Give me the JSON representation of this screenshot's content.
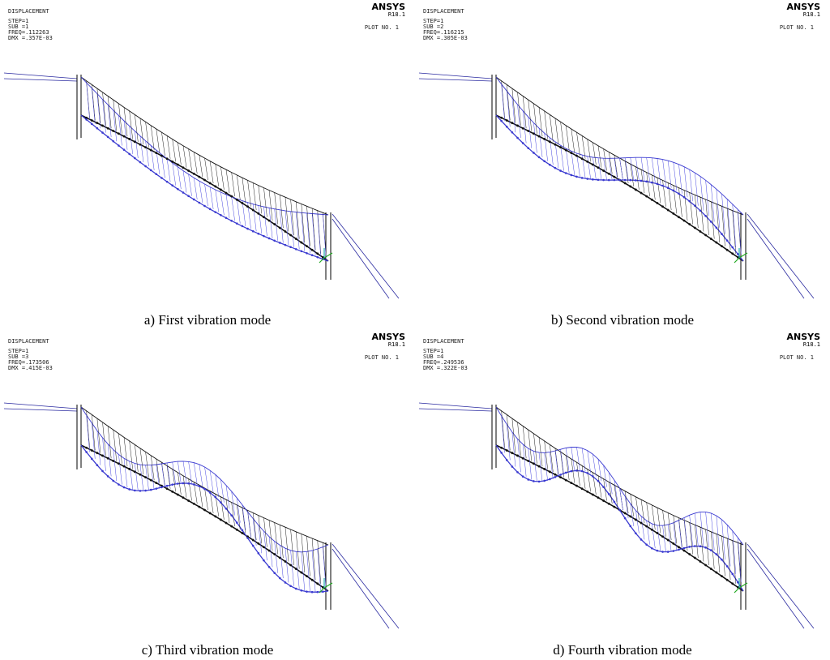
{
  "panels": [
    {
      "label": "DISPLACEMENT",
      "step": "STEP=1",
      "sub": "SUB =1",
      "freq": "FREQ=.112263",
      "dmx": "DMX =.357E-03",
      "brand": "ANSYS",
      "version": "R18.1",
      "plot": "PLOT NO.   1",
      "caption": "a) First vibration mode"
    },
    {
      "label": "DISPLACEMENT",
      "step": "STEP=1",
      "sub": "SUB =2",
      "freq": "FREQ=.116215",
      "dmx": "DMX =.305E-03",
      "brand": "ANSYS",
      "version": "R18.1",
      "plot": "PLOT NO.   1",
      "caption": "b) Second vibration mode"
    },
    {
      "label": "DISPLACEMENT",
      "step": "STEP=1",
      "sub": "SUB =3",
      "freq": "FREQ=.173506",
      "dmx": "DMX =.415E-03",
      "brand": "ANSYS",
      "version": "R18.1",
      "plot": "PLOT NO.   1",
      "caption": "c) Third vibration mode"
    },
    {
      "label": "DISPLACEMENT",
      "step": "STEP=1",
      "sub": "SUB =4",
      "freq": "FREQ=.249536",
      "dmx": "DMX =.322E-03",
      "brand": "ANSYS",
      "version": "R18.1",
      "plot": "PLOT NO.   1",
      "caption": "d) Fourth vibration mode"
    }
  ]
}
